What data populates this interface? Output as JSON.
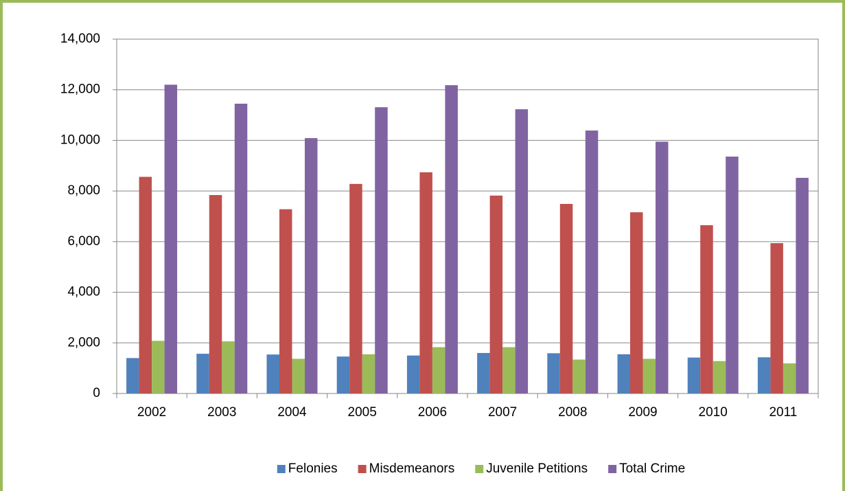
{
  "chart_data": {
    "type": "bar",
    "categories": [
      "2002",
      "2003",
      "2004",
      "2005",
      "2006",
      "2007",
      "2008",
      "2009",
      "2010",
      "2011"
    ],
    "series": [
      {
        "name": "Felonies",
        "color": "#4f81bd",
        "values": [
          1400,
          1570,
          1540,
          1460,
          1500,
          1600,
          1590,
          1550,
          1420,
          1430
        ]
      },
      {
        "name": "Misdemeanors",
        "color": "#c0504d",
        "values": [
          8560,
          7840,
          7280,
          8280,
          8740,
          7820,
          7490,
          7160,
          6650,
          5940
        ]
      },
      {
        "name": "Juvenile Petitions",
        "color": "#9bbb59",
        "values": [
          2080,
          2060,
          1370,
          1550,
          1830,
          1830,
          1340,
          1370,
          1280,
          1190
        ]
      },
      {
        "name": "Total Crime",
        "color": "#8064a2",
        "values": [
          12200,
          11450,
          10090,
          11310,
          12180,
          11230,
          10390,
          9950,
          9360,
          8520
        ]
      }
    ],
    "ylim": [
      0,
      14000
    ],
    "yticks": [
      0,
      {
        "value": 2000,
        "label": "2,000"
      },
      {
        "value": 4000,
        "label": "4,000"
      },
      {
        "value": 6000,
        "label": "6,000"
      },
      {
        "value": 8000,
        "label": "8,000"
      },
      {
        "value": 10000,
        "label": "10,000"
      },
      {
        "value": 12000,
        "label": "12,000"
      },
      {
        "value": 14000,
        "label": "14,000"
      }
    ],
    "grid": true,
    "legend": "bottom"
  }
}
